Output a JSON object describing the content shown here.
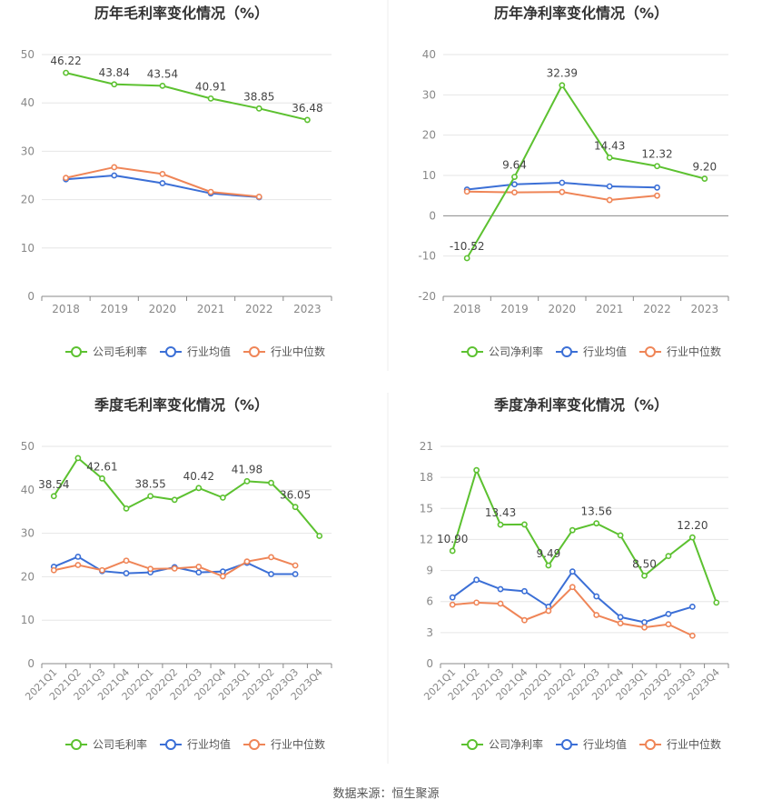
{
  "footer": "数据来源：恒生聚源",
  "colors": {
    "company": "#5cc130",
    "industry_avg": "#3b6fd6",
    "industry_median": "#ef8557",
    "grid": "#e6e6e6",
    "axis": "#888888"
  },
  "chart_data": [
    {
      "type": "line",
      "title": "历年毛利率变化情况（%）",
      "categories": [
        "2018",
        "2019",
        "2020",
        "2021",
        "2022",
        "2023"
      ],
      "ylim": [
        0,
        50
      ],
      "yticks": [
        0,
        10,
        20,
        30,
        40,
        50
      ],
      "grid": true,
      "legend": "bottom",
      "series": [
        {
          "name": "公司毛利率",
          "role": "company",
          "values": [
            46.22,
            43.84,
            43.54,
            40.91,
            38.85,
            36.48
          ],
          "labels": [
            "46.22",
            "43.84",
            "43.54",
            "40.91",
            "38.85",
            "36.48"
          ]
        },
        {
          "name": "行业均值",
          "role": "industry_avg",
          "values": [
            24.2,
            25.0,
            23.4,
            21.3,
            20.5,
            null
          ]
        },
        {
          "name": "行业中位数",
          "role": "industry_median",
          "values": [
            24.5,
            26.7,
            25.3,
            21.6,
            20.6,
            null
          ]
        }
      ]
    },
    {
      "type": "line",
      "title": "历年净利率变化情况（%）",
      "categories": [
        "2018",
        "2019",
        "2020",
        "2021",
        "2022",
        "2023"
      ],
      "ylim": [
        -20,
        40
      ],
      "yticks": [
        -20,
        -10,
        0,
        10,
        20,
        30,
        40
      ],
      "grid": true,
      "legend": "bottom",
      "series": [
        {
          "name": "公司净利率",
          "role": "company",
          "values": [
            -10.52,
            9.64,
            32.39,
            14.43,
            12.32,
            9.2
          ],
          "labels": [
            "-10.52",
            "9.64",
            "32.39",
            "14.43",
            "12.32",
            "9.20"
          ]
        },
        {
          "name": "行业均值",
          "role": "industry_avg",
          "values": [
            6.5,
            7.8,
            8.2,
            7.3,
            7.0,
            null
          ]
        },
        {
          "name": "行业中位数",
          "role": "industry_median",
          "values": [
            6.0,
            5.8,
            5.9,
            3.9,
            5.0,
            null
          ]
        }
      ]
    },
    {
      "type": "line",
      "title": "季度毛利率变化情况（%）",
      "categories": [
        "2021Q1",
        "2021Q2",
        "2021Q3",
        "2021Q4",
        "2022Q1",
        "2022Q2",
        "2022Q3",
        "2022Q4",
        "2023Q1",
        "2023Q2",
        "2023Q3",
        "2023Q4"
      ],
      "ylim": [
        0,
        50
      ],
      "yticks": [
        0,
        10,
        20,
        30,
        40,
        50
      ],
      "grid": true,
      "legend": "bottom",
      "series": [
        {
          "name": "公司毛利率",
          "role": "company",
          "values": [
            38.54,
            47.3,
            42.61,
            35.7,
            38.55,
            37.7,
            40.42,
            38.2,
            41.98,
            41.6,
            36.05,
            29.4
          ],
          "labels": [
            "38.54",
            "",
            "42.61",
            "",
            "38.55",
            "",
            "40.42",
            "",
            "41.98",
            "",
            "36.05",
            ""
          ]
        },
        {
          "name": "行业均值",
          "role": "industry_avg",
          "values": [
            22.3,
            24.6,
            21.3,
            20.8,
            21.0,
            22.2,
            21.0,
            21.2,
            23.2,
            20.6,
            20.6,
            null
          ]
        },
        {
          "name": "行业中位数",
          "role": "industry_median",
          "values": [
            21.5,
            22.7,
            21.5,
            23.7,
            21.8,
            21.9,
            22.3,
            20.1,
            23.5,
            24.5,
            22.6,
            null
          ]
        }
      ]
    },
    {
      "type": "line",
      "title": "季度净利率变化情况（%）",
      "categories": [
        "2021Q1",
        "2021Q2",
        "2021Q3",
        "2021Q4",
        "2022Q1",
        "2022Q2",
        "2022Q3",
        "2022Q4",
        "2023Q1",
        "2023Q2",
        "2023Q3",
        "2023Q4"
      ],
      "ylim": [
        0,
        21
      ],
      "yticks": [
        0,
        3,
        6,
        9,
        12,
        15,
        18,
        21
      ],
      "grid": true,
      "legend": "bottom",
      "series": [
        {
          "name": "公司净利率",
          "role": "company",
          "values": [
            10.9,
            18.7,
            13.43,
            13.45,
            9.49,
            12.9,
            13.56,
            12.4,
            8.5,
            10.4,
            12.2,
            5.9
          ],
          "labels": [
            "10.90",
            "",
            "13.43",
            "",
            "9.49",
            "",
            "13.56",
            "",
            "8.50",
            "",
            "12.20",
            ""
          ]
        },
        {
          "name": "行业均值",
          "role": "industry_avg",
          "values": [
            6.4,
            8.1,
            7.2,
            7.0,
            5.5,
            8.9,
            6.5,
            4.5,
            4.0,
            4.8,
            5.5,
            null
          ]
        },
        {
          "name": "行业中位数",
          "role": "industry_median",
          "values": [
            5.7,
            5.9,
            5.8,
            4.2,
            5.1,
            7.4,
            4.7,
            3.9,
            3.5,
            3.8,
            2.7,
            null
          ]
        }
      ]
    }
  ]
}
